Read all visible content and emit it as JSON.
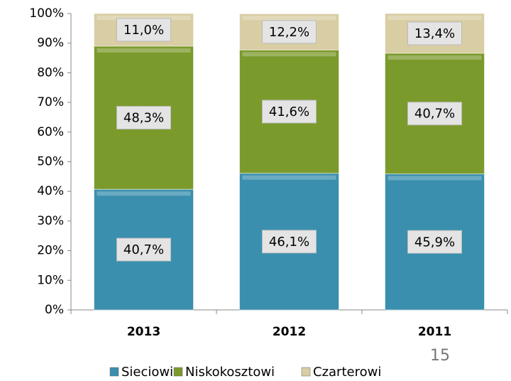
{
  "chart_data": {
    "type": "stacked_bar",
    "categories": [
      "2013",
      "2012",
      "2011"
    ],
    "series": [
      {
        "name": "Sieciowi",
        "color": "#3a8fae",
        "values": [
          40.7,
          46.1,
          45.9
        ],
        "value_labels": [
          "40,7%",
          "46,1%",
          "45,9%"
        ]
      },
      {
        "name": "Niskokosztowi",
        "color": "#7b9a2c",
        "values": [
          48.3,
          41.6,
          40.7
        ],
        "value_labels": [
          "48,3%",
          "41,6%",
          "40,7%"
        ]
      },
      {
        "name": "Czarterowi",
        "color": "#d8cda3",
        "values": [
          11.0,
          12.2,
          13.4
        ],
        "value_labels": [
          "11,0%",
          "12,2%",
          "13,4%"
        ]
      }
    ],
    "ylim": [
      0,
      100
    ],
    "yticks": [
      {
        "value": 0,
        "label": "0%"
      },
      {
        "value": 10,
        "label": "10%"
      },
      {
        "value": 20,
        "label": "20%"
      },
      {
        "value": 30,
        "label": "30%"
      },
      {
        "value": 40,
        "label": "40%"
      },
      {
        "value": 50,
        "label": "50%"
      },
      {
        "value": 60,
        "label": "60%"
      },
      {
        "value": 70,
        "label": "70%"
      },
      {
        "value": 80,
        "label": "80%"
      },
      {
        "value": 90,
        "label": "90%"
      },
      {
        "value": 100,
        "label": "100%"
      }
    ],
    "legend": "bottom",
    "page_number": "15"
  }
}
